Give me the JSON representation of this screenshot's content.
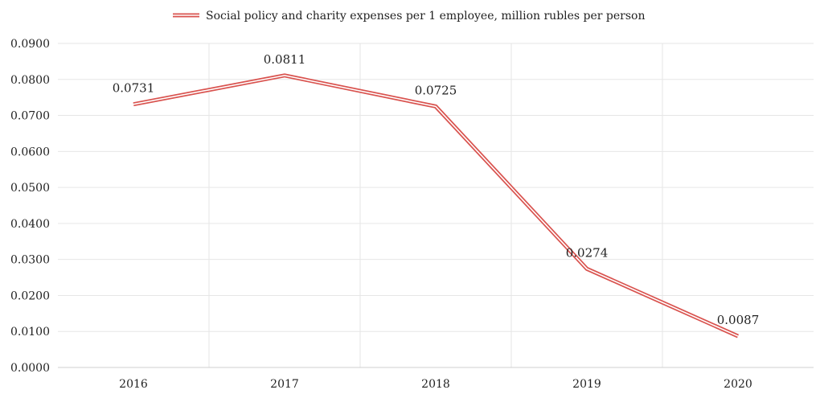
{
  "chart_data": {
    "type": "line",
    "title": "",
    "xlabel": "",
    "ylabel": "",
    "categories": [
      "2016",
      "2017",
      "2018",
      "2019",
      "2020"
    ],
    "series": [
      {
        "name": "Social policy and charity expenses per 1 employee, million rubles per person",
        "values": [
          0.0731,
          0.0811,
          0.0725,
          0.0274,
          0.0087
        ],
        "labels": [
          "0.0731",
          "0.0811",
          "0.0725",
          "0.0274",
          "0.0087"
        ],
        "color": "#d9534f"
      }
    ],
    "ylim": [
      0,
      0.09
    ],
    "yticks": [
      "0.0000",
      "0.0100",
      "0.0200",
      "0.0300",
      "0.0400",
      "0.0500",
      "0.0600",
      "0.0700",
      "0.0800",
      "0.0900"
    ],
    "grid": true,
    "legend": "top-center"
  }
}
